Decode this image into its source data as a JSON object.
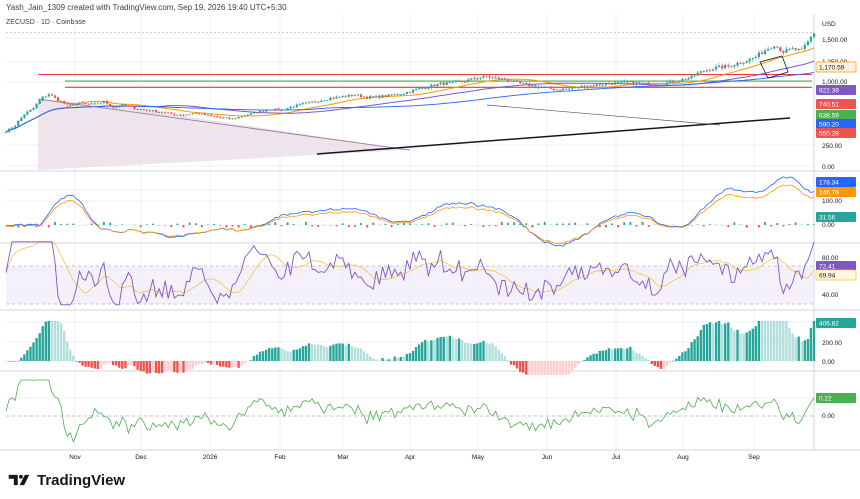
{
  "header": {
    "credit": "Yash_Jain_1309 created with TradingView.com, Sep 19, 2026 19:40 UTC+5:30",
    "symbol": "ZECUSD · 1D · Coinbase"
  },
  "brand": {
    "name": "TradingView"
  },
  "colors": {
    "up": "#26a69a",
    "down": "#ef5350",
    "grid": "#eef0f3",
    "ema_orange": "#ff9800",
    "ma_purple": "#7e57c2",
    "ma_blue": "#2962ff",
    "trend_black": "#131722",
    "level_red": "#e5393f",
    "level_green": "#4caf50",
    "channel_fill": "#e8dce6",
    "rsi_band": "#ede7f6",
    "rsi_line": "#7e57c2",
    "osc_line": "#4caf50"
  },
  "chart_data": [
    {
      "type": "candlestick",
      "name": "price",
      "y_axis_unit": "USD",
      "y_ticks": [
        "1,500.00",
        "1,250.00",
        "1,000.00",
        "250.00",
        "0.00"
      ],
      "x_ticks": [
        "Nov",
        "Dec",
        "2026",
        "Feb",
        "Mar",
        "Apr",
        "May",
        "Jun",
        "Jul",
        "Aug",
        "Sep"
      ],
      "price_labels": [
        "1,170.59",
        "922.39",
        "740.51",
        "638.59",
        "590.20",
        "550.28"
      ],
      "close_path": [
        [
          0,
          110
        ],
        [
          3,
          150
        ],
        [
          6,
          240
        ],
        [
          9,
          300
        ],
        [
          12,
          420
        ],
        [
          14,
          460
        ],
        [
          17,
          390
        ],
        [
          20,
          330
        ],
        [
          24,
          350
        ],
        [
          28,
          340
        ],
        [
          32,
          370
        ],
        [
          35,
          310
        ],
        [
          38,
          330
        ],
        [
          42,
          300
        ],
        [
          46,
          280
        ],
        [
          50,
          265
        ],
        [
          54,
          245
        ],
        [
          58,
          235
        ],
        [
          62,
          250
        ],
        [
          66,
          230
        ],
        [
          70,
          210
        ],
        [
          74,
          200
        ],
        [
          78,
          230
        ],
        [
          82,
          260
        ],
        [
          86,
          290
        ],
        [
          90,
          280
        ],
        [
          94,
          320
        ],
        [
          98,
          350
        ],
        [
          102,
          380
        ],
        [
          106,
          410
        ],
        [
          110,
          430
        ],
        [
          114,
          450
        ],
        [
          118,
          420
        ],
        [
          122,
          430
        ],
        [
          126,
          445
        ],
        [
          130,
          470
        ],
        [
          134,
          520
        ],
        [
          138,
          560
        ],
        [
          142,
          600
        ],
        [
          146,
          610
        ],
        [
          150,
          640
        ],
        [
          154,
          690
        ],
        [
          157,
          710
        ],
        [
          160,
          680
        ],
        [
          164,
          660
        ],
        [
          168,
          600
        ],
        [
          172,
          570
        ],
        [
          176,
          540
        ],
        [
          180,
          520
        ],
        [
          184,
          530
        ],
        [
          188,
          560
        ],
        [
          192,
          580
        ],
        [
          196,
          600
        ],
        [
          200,
          610
        ],
        [
          204,
          620
        ],
        [
          208,
          600
        ],
        [
          212,
          590
        ],
        [
          216,
          610
        ],
        [
          220,
          650
        ],
        [
          224,
          700
        ],
        [
          226,
          760
        ],
        [
          228,
          800
        ],
        [
          230,
          830
        ],
        [
          233,
          860
        ],
        [
          236,
          880
        ],
        [
          239,
          930
        ],
        [
          242,
          980
        ],
        [
          245,
          1050
        ],
        [
          248,
          1180
        ],
        [
          251,
          1300
        ],
        [
          254,
          1150
        ],
        [
          257,
          1200
        ],
        [
          260,
          1170
        ],
        [
          262,
          1350
        ],
        [
          264,
          1560
        ]
      ],
      "levels": [
        740.51,
        638.59,
        550.28
      ]
    },
    {
      "type": "line",
      "name": "oscillator_1",
      "y_ticks": [
        "200.00",
        "100.00",
        "0.00"
      ],
      "labels": [
        "178.34",
        "146.76",
        "31.56"
      ]
    },
    {
      "type": "line",
      "name": "rsi",
      "y_ticks": [
        "80.00",
        "40.00"
      ],
      "labels": [
        "72.41",
        "69.94"
      ]
    },
    {
      "type": "bar",
      "name": "histogram",
      "y_ticks": [
        "200.00",
        "0.00"
      ],
      "labels": [
        "406.82"
      ]
    },
    {
      "type": "line",
      "name": "oscillator_2",
      "y_ticks": [
        "0.00"
      ],
      "labels": [
        "0.22"
      ]
    }
  ]
}
